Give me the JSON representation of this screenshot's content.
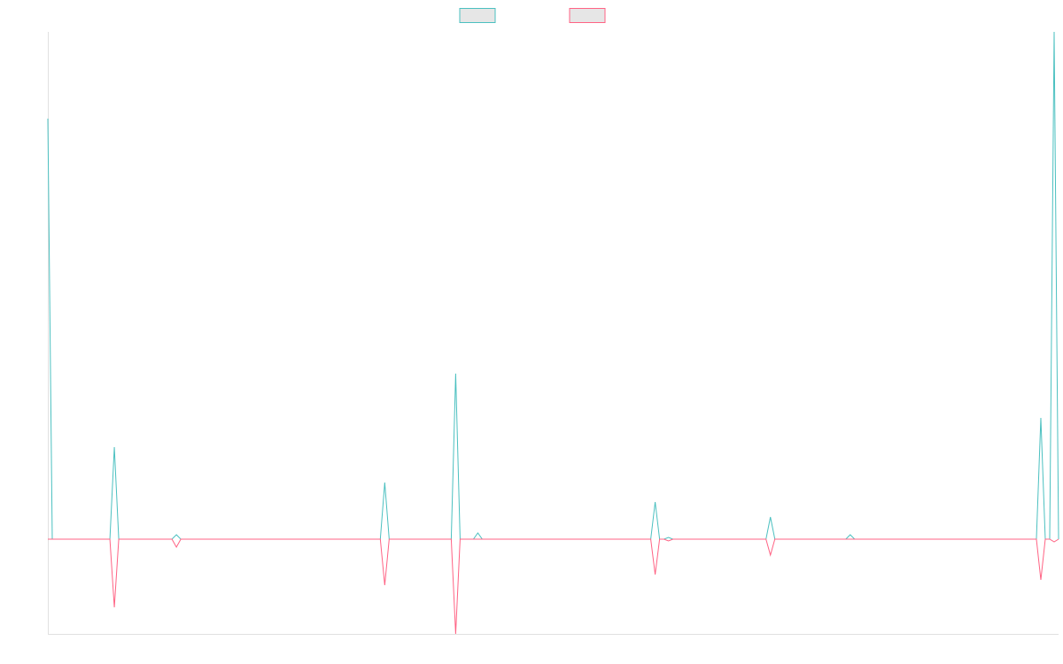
{
  "chart_data": {
    "type": "line",
    "x": [
      0,
      1,
      14,
      15,
      16,
      28,
      29,
      30,
      75,
      76,
      77,
      91,
      92,
      93,
      96,
      97,
      98,
      136,
      137,
      138,
      139,
      140,
      141,
      162,
      163,
      164,
      180,
      181,
      182,
      223,
      224,
      225,
      226,
      227,
      228
    ],
    "series": [
      {
        "color": "#4bc0c0",
        "values": [
          4.75,
          0,
          0,
          1.04,
          0,
          0,
          0.05,
          0,
          0,
          0.64,
          0,
          0,
          1.87,
          0,
          0,
          0.07,
          0,
          0,
          0.42,
          0,
          0,
          0.02,
          0,
          0,
          0.25,
          0,
          0,
          0.05,
          0,
          0,
          1.37,
          0,
          0,
          5.73,
          0
        ]
      },
      {
        "color": "#ff6384",
        "values": [
          0,
          0,
          0,
          -0.77,
          0,
          0,
          -0.09,
          0,
          0,
          -0.52,
          0,
          0,
          -1.07,
          0,
          0,
          0,
          0,
          0,
          -0.4,
          0,
          0,
          -0.02,
          0,
          0,
          -0.18,
          0,
          0,
          0,
          0,
          0,
          -0.46,
          0,
          0,
          -0.03,
          0
        ]
      }
    ],
    "xlim": [
      0,
      228
    ],
    "ylim": [
      -1.07,
      5.73
    ],
    "legend": "top"
  }
}
